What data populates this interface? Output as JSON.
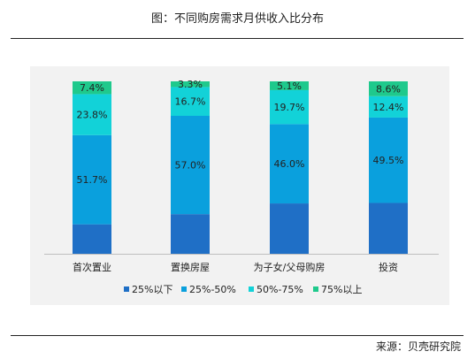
{
  "title": "图：不同购房需求月供收入比分布",
  "source": "来源：贝壳研究院",
  "colors": {
    "s1": "#1f6fc6",
    "s2": "#0aa0dd",
    "s3": "#12d2d8",
    "s4": "#1fc98c"
  },
  "chart_data": {
    "type": "bar",
    "stacked": true,
    "categories": [
      "首次置业",
      "置换房屋",
      "为子女/父母购房",
      "投资"
    ],
    "series": [
      {
        "name": "25%以下",
        "values": [
          17.1,
          23.0,
          29.2,
          29.5
        ],
        "labels": [
          "",
          "",
          "",
          ""
        ]
      },
      {
        "name": "25%-50%",
        "values": [
          51.7,
          57.0,
          46.0,
          49.5
        ],
        "labels": [
          "51.7%",
          "57.0%",
          "46.0%",
          "49.5%"
        ]
      },
      {
        "name": "50%-75%",
        "values": [
          23.8,
          16.7,
          19.7,
          12.4
        ],
        "labels": [
          "23.8%",
          "16.7%",
          "19.7%",
          "12.4%"
        ]
      },
      {
        "name": "75%以上",
        "values": [
          7.4,
          3.3,
          5.1,
          8.6
        ],
        "labels": [
          "7.4%",
          "3.3%",
          "5.1%",
          "8.6%"
        ]
      }
    ],
    "ylim": [
      0,
      100
    ],
    "grid": false,
    "legend_position": "bottom"
  }
}
